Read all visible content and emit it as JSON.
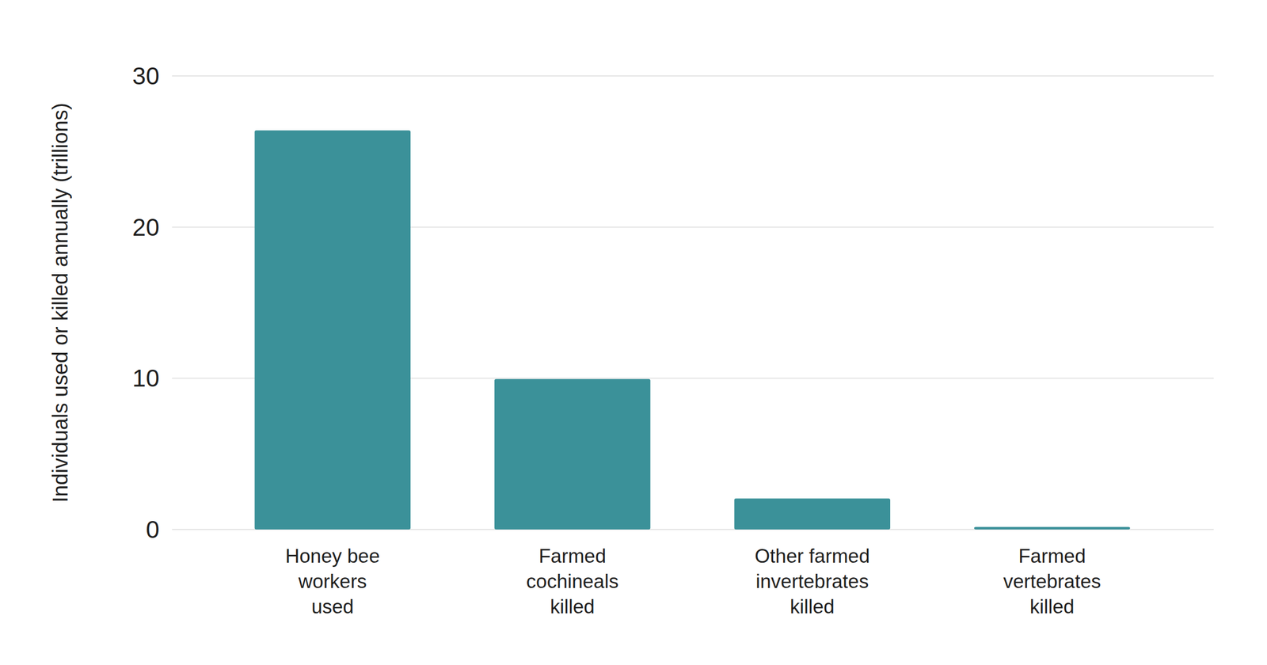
{
  "chart_data": {
    "type": "bar",
    "y_label": "Individuals used or killed annually (trillions)",
    "categories": [
      "Honey bee\nworkers\nused",
      "Farmed\ncochineals\nkilled",
      "Other farmed\ninvertebrates\nkilled",
      "Farmed\nvertebrates\nkilled"
    ],
    "values": [
      26.4,
      9.95,
      2.05,
      0.17
    ],
    "color": "#3b9199",
    "ylim": [
      0,
      30
    ],
    "yticks": [
      0,
      10,
      20,
      30
    ],
    "grid": true
  }
}
